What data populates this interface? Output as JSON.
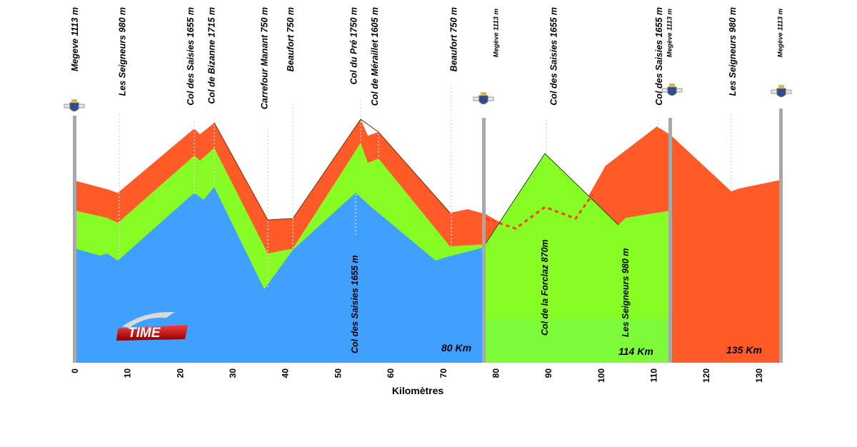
{
  "chart_data": {
    "type": "area",
    "xlabel": "Kilomètres",
    "xlim": [
      0,
      135
    ],
    "xticks": [
      0,
      10,
      20,
      30,
      40,
      50,
      60,
      70,
      80,
      90,
      100,
      110,
      120,
      130
    ],
    "series": [
      {
        "name": "80 Km",
        "color": "#3fa0ff",
        "x": [
          0,
          5,
          6,
          8,
          9,
          22,
          24,
          26,
          36,
          40,
          54,
          58,
          70,
          72,
          80
        ],
        "y": [
          1113,
          1080,
          1090,
          1070,
          980,
          1655,
          1610,
          1715,
          750,
          880,
          1750,
          1605,
          930,
          980,
          1113
        ]
      },
      {
        "name": "114 Km",
        "color": "#86fc24",
        "x": [
          0,
          6,
          9,
          23,
          26,
          36,
          40,
          54,
          58,
          70,
          80,
          91,
          104,
          106,
          114
        ],
        "y": [
          1113,
          1090,
          980,
          1655,
          1715,
          750,
          750,
          1750,
          1605,
          750,
          1113,
          1655,
          980,
          1000,
          1113
        ]
      },
      {
        "name": "135 Km",
        "color": "#ff5a27",
        "x": [
          0,
          6,
          9,
          23,
          26,
          36,
          41,
          53,
          54,
          58,
          72,
          76,
          80,
          86,
          91,
          96,
          101,
          111,
          114,
          125,
          127,
          135
        ],
        "y": [
          1113,
          1100,
          980,
          1655,
          1715,
          750,
          750,
          1750,
          1700,
          1605,
          750,
          760,
          870,
          840,
          900,
          850,
          1000,
          1655,
          1620,
          980,
          980,
          1113
        ]
      }
    ],
    "annotations": [
      {
        "km": 0,
        "label": "Megeve 1113 m",
        "type": "start"
      },
      {
        "km": 9,
        "label": "Les Seigneurs 980 m"
      },
      {
        "km": 22,
        "label": "Col des Saisies 1655 m"
      },
      {
        "km": 26,
        "label": "Col de Bizanne 1715 m"
      },
      {
        "km": 36,
        "label": "Carrefour Manant 750 m"
      },
      {
        "km": 41,
        "label": "Beaufort 750 m"
      },
      {
        "km": 53,
        "label": "Col du Pré 1750 m"
      },
      {
        "km": 57,
        "label": "Col de Méraillet 1605 m"
      },
      {
        "km": 72,
        "label": "Beaufort 750 m"
      },
      {
        "km": 80,
        "label": "Megève 1113 m",
        "type": "finish"
      },
      {
        "km": 91,
        "label": "Col des Saisies 1655 m"
      },
      {
        "km": 111,
        "label": "Col des Saisies 1655 m"
      },
      {
        "km": 113,
        "label": "Megève 1113 m",
        "type": "finish"
      },
      {
        "km": 125,
        "label": "Les Seigneurs 980 m"
      },
      {
        "km": 134,
        "label": "Megève 1113 m",
        "type": "finish"
      }
    ],
    "inner_labels": [
      {
        "km": 53,
        "label": "Col des Saisies 1655 m"
      },
      {
        "km": 90,
        "label": "Col de la Forclaz 870m"
      },
      {
        "km": 104,
        "label": "Les Seigneurs 980 m"
      }
    ],
    "distance_labels": [
      "80 Km",
      "114 Km",
      "135 Km"
    ],
    "logo_text": "TIME"
  }
}
